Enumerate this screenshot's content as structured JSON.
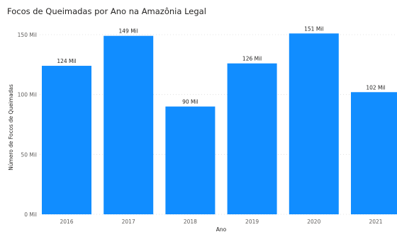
{
  "chart_data": {
    "type": "bar",
    "title": "Focos de Queimadas por Ano na Amazônia Legal",
    "xlabel": "Ano",
    "ylabel": "Número de Focos de Queimadas",
    "categories": [
      "2016",
      "2017",
      "2018",
      "2019",
      "2020",
      "2021"
    ],
    "values": [
      124000,
      149000,
      90000,
      126000,
      151000,
      102000
    ],
    "data_labels": [
      "124 Mil",
      "149 Mil",
      "90 Mil",
      "126 Mil",
      "151 Mil",
      "102 Mil"
    ],
    "yticks": [
      0,
      50000,
      100000,
      150000
    ],
    "ytick_labels": [
      "0 Mil",
      "50 Mil",
      "100 Mil",
      "150 Mil"
    ],
    "ylim": [
      0,
      150000
    ],
    "grid": true,
    "bar_color": "#118DFF"
  }
}
